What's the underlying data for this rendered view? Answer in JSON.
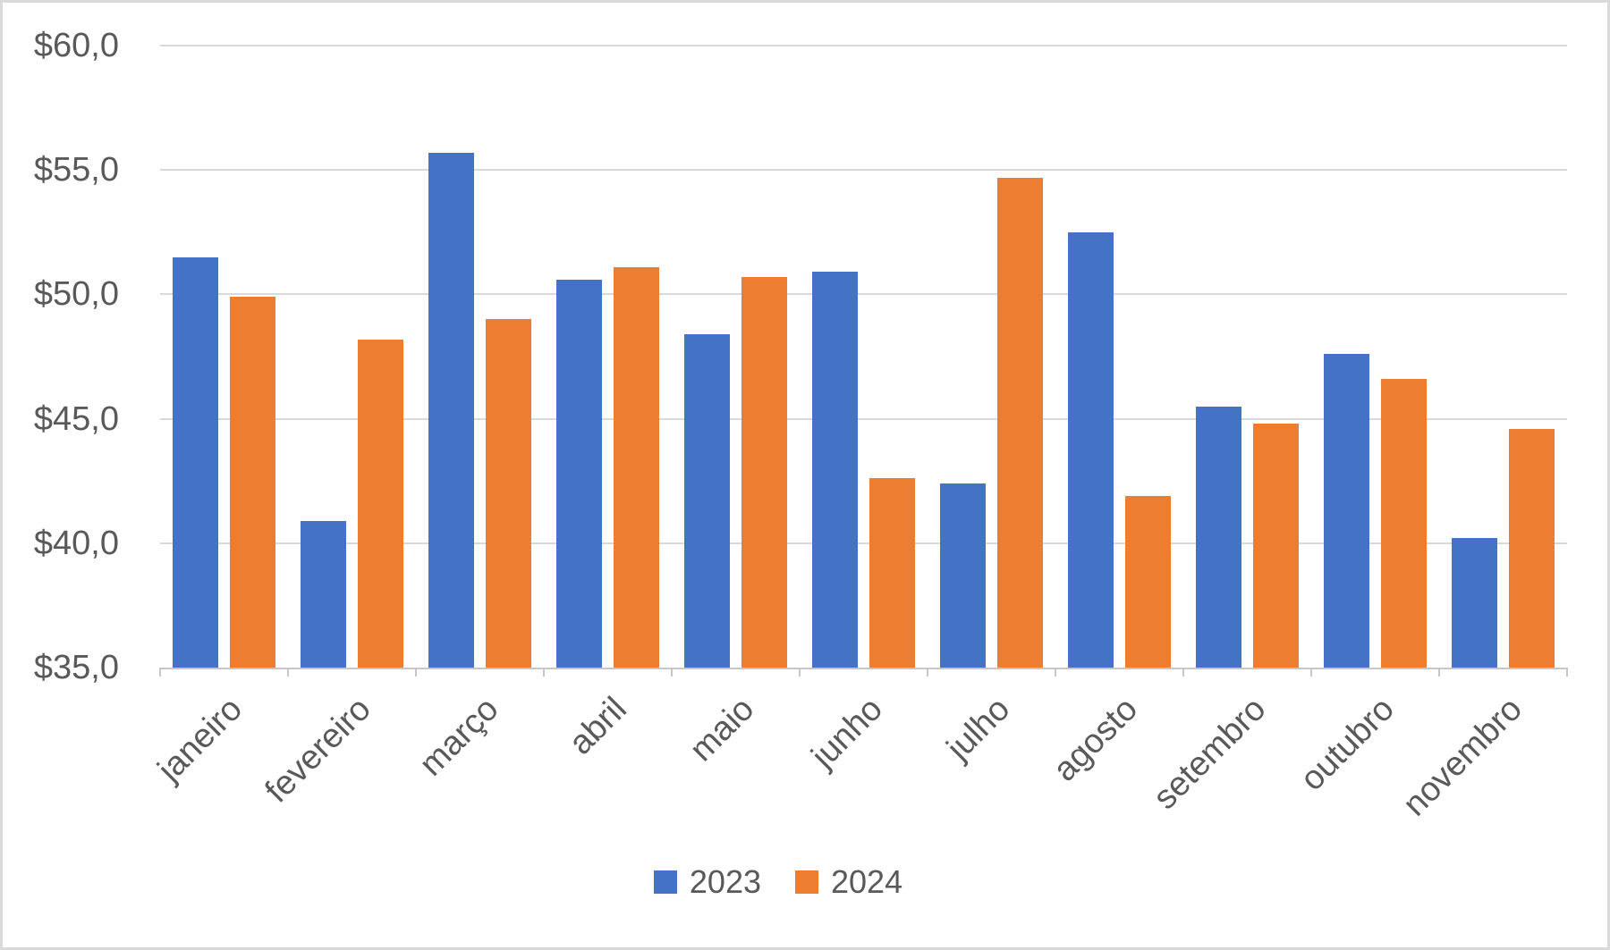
{
  "chart_data": {
    "type": "bar",
    "title": "",
    "xlabel": "",
    "ylabel": "",
    "categories": [
      "janeiro",
      "fevereiro",
      "março",
      "abril",
      "maio",
      "junho",
      "julho",
      "agosto",
      "setembro",
      "outubro",
      "novembro"
    ],
    "series": [
      {
        "name": "2023",
        "color": "#4472C4",
        "values": [
          51.5,
          40.9,
          55.7,
          50.6,
          48.4,
          50.9,
          42.4,
          52.5,
          45.5,
          47.6,
          40.2
        ]
      },
      {
        "name": "2024",
        "color": "#ED7D31",
        "values": [
          49.9,
          48.2,
          49.0,
          51.1,
          50.7,
          42.6,
          54.7,
          41.9,
          44.8,
          46.6,
          44.6
        ]
      }
    ],
    "ylim": [
      35,
      60
    ],
    "ytick_step": 5,
    "ytick_labels_top_to_bottom": [
      "$60,0",
      "$55,0",
      "$50,0",
      "$45,0",
      "$40,0",
      "$35,0"
    ],
    "grid": "horizontal",
    "legend_position": "bottom",
    "number_format": "currency-comma-decimal"
  },
  "legend": {
    "items": [
      {
        "label": "2023",
        "color": "#4472C4"
      },
      {
        "label": "2024",
        "color": "#ED7D31"
      }
    ]
  },
  "colors": {
    "series_2023": "#4472C4",
    "series_2024": "#ED7D31",
    "text": "#595959",
    "gridline": "#D9D9D9",
    "axis_line": "#C6C6C6",
    "chart_border": "#D9D9D9",
    "background": "#FFFFFF"
  }
}
